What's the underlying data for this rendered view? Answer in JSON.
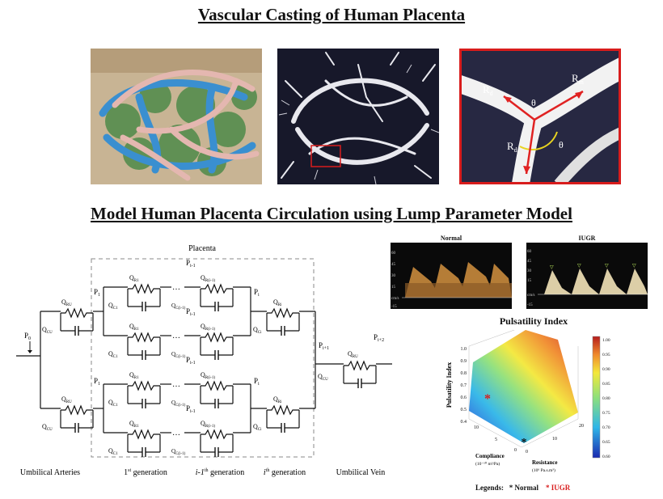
{
  "titles": {
    "top": "Vascular Casting of Human Placenta",
    "middle": "Model Human Placenta Circulation using Lump Parameter Model"
  },
  "branch_labels": {
    "rd_top": "R",
    "rd_top_sub": "d",
    "rm": "R",
    "rm_sub": "m",
    "rd_bottom": "R",
    "rd_bottom_sub": "d",
    "theta": "θ"
  },
  "circuit": {
    "placenta_label": "Placenta",
    "pressures": {
      "p0": "P",
      "p0_sub": "0",
      "p1": "P",
      "p1_sub": "1",
      "pi1": "P",
      "pi1_sub": "i-1",
      "pi": "P",
      "pi_sub": "i",
      "pip1": "P",
      "pip1_sub": "i+1",
      "pip2": "P",
      "pip2_sub": "i+2"
    },
    "components": {
      "qr": "Q",
      "qr_sub_ua": "RU",
      "qc_sub_ua": "CU",
      "qr_sub_1": "R1",
      "qc_sub_1": "C1",
      "qr_sub_i1": "R(i-1)",
      "qc_sub_i1": "C(i-1)",
      "qr_sub_i": "Ri",
      "qc_sub_i": "Ci",
      "qr_sub_v": "RU",
      "qc_sub_v": "CU"
    },
    "bottom_labels": {
      "umbilical_arteries": "Umbilical Arteries",
      "gen1": "1",
      "gen1_sup": "st",
      "gen1_text": " generation",
      "geni1": "i-1",
      "geni1_sup": "th",
      "geni1_text": " generation",
      "geni": "i",
      "geni_sup": "th",
      "geni_text": " generation",
      "umbilical_vein": "Umbilical Vein"
    }
  },
  "doppler": {
    "normal_label": "Normal",
    "iugr_label": "IUGR",
    "normal_ticks": [
      "60",
      "45",
      "30",
      "15",
      "cm/s",
      "-15"
    ],
    "iugr_ticks": [
      "60",
      "45",
      "30",
      "15",
      "cm/s",
      "-15"
    ]
  },
  "pulsatility": {
    "title": "Pulsatility Index",
    "z_label": "Pulsatility Index",
    "z_ticks": [
      "1.0",
      "0.9",
      "0.8",
      "0.7",
      "0.6",
      "0.5",
      "0.4"
    ],
    "x_label": "Compliance",
    "x_units": "(10⁻¹⁰ m³/Pa)",
    "x_ticks": [
      "10",
      "5",
      "0"
    ],
    "y_label": "Resistance",
    "y_units": "(10⁶ Pa.s.m³)",
    "y_ticks": [
      "0",
      "10",
      "20"
    ],
    "colorbar_ticks": [
      "1.00",
      "0.95",
      "0.90",
      "0.85",
      "0.80",
      "0.75",
      "0.70",
      "0.65",
      "0.60"
    ],
    "legend_prefix": "Legends:",
    "legend_normal": "Normal",
    "legend_iugr": "IUGR",
    "colors": {
      "normal": "#111111",
      "iugr": "#d81c1c"
    }
  }
}
